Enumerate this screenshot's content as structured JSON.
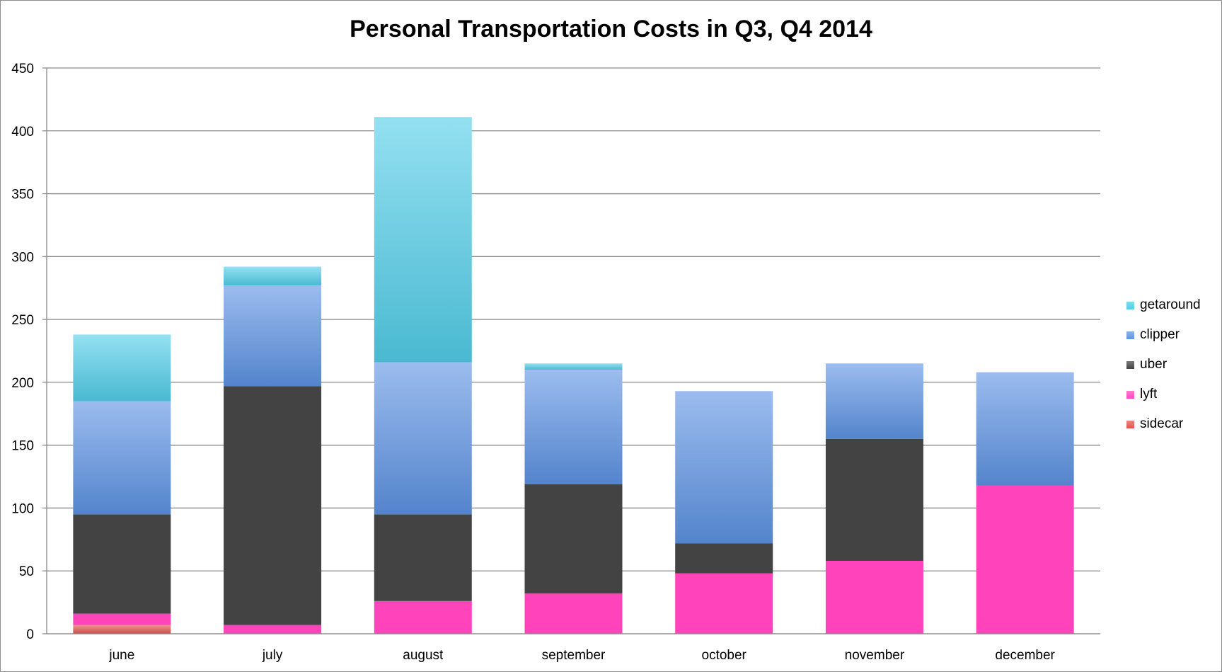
{
  "chart_data": {
    "type": "bar",
    "stacked": true,
    "title": "Personal Transportation Costs in Q3, Q4 2014",
    "xlabel": "",
    "ylabel": "",
    "categories": [
      "june",
      "july",
      "august",
      "september",
      "october",
      "november",
      "december"
    ],
    "ylim": [
      0,
      450
    ],
    "yticks": [
      0,
      50,
      100,
      150,
      200,
      250,
      300,
      350,
      400,
      450
    ],
    "grid": true,
    "legend_position": "right",
    "series": [
      {
        "name": "sidecar",
        "color": "#e0544f",
        "values": [
          7,
          0,
          0,
          0,
          0,
          0,
          0
        ]
      },
      {
        "name": "lyft",
        "color": "#ff44bb",
        "values": [
          9,
          7,
          26,
          32,
          48,
          58,
          118
        ]
      },
      {
        "name": "uber",
        "color": "#434343",
        "values": [
          79,
          190,
          69,
          87,
          24,
          97,
          0
        ]
      },
      {
        "name": "clipper",
        "color": "#5d93e3",
        "values": [
          90,
          80,
          121,
          91,
          121,
          60,
          90
        ]
      },
      {
        "name": "getaround",
        "color": "#52cde8",
        "values": [
          53,
          15,
          195,
          5,
          0,
          0,
          0
        ]
      }
    ],
    "legend_order": [
      "getaround",
      "clipper",
      "uber",
      "lyft",
      "sidecar"
    ]
  }
}
